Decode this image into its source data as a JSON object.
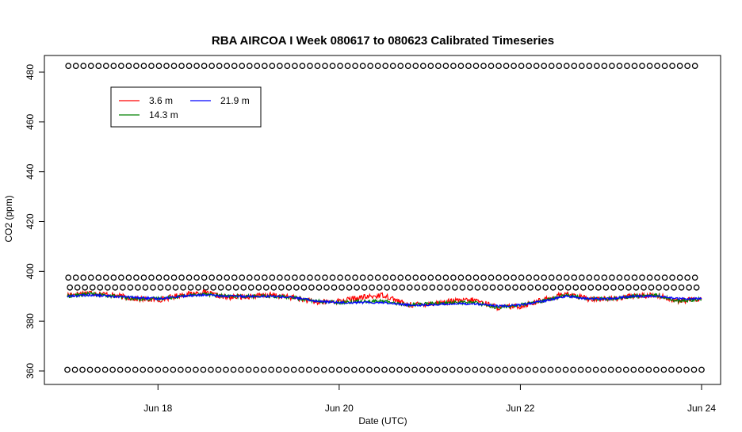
{
  "chart_data": {
    "type": "line",
    "title": "RBA AIRCOA I  Week 080617 to 080623  Calibrated Timeseries",
    "xlabel": "Date (UTC)",
    "ylabel": "CO2 (ppm)",
    "x_ticks": [
      "Jun 18",
      "Jun 20",
      "Jun 22",
      "Jun 24"
    ],
    "y_ticks": [
      "360",
      "380",
      "400",
      "420",
      "440",
      "460",
      "480"
    ],
    "xlim": [
      "2008-06-17 00:00",
      "2008-06-24 00:00"
    ],
    "ylim": [
      357,
      485
    ],
    "legend_position": "top-left",
    "series": [
      {
        "name": "3.6 m",
        "color": "#ff0000",
        "points": [
          [
            "2008-06-17 00:00",
            390.5
          ],
          [
            "2008-06-17 06:00",
            391.5
          ],
          [
            "2008-06-17 12:00",
            390.5
          ],
          [
            "2008-06-17 18:00",
            389.0
          ],
          [
            "2008-06-18 00:00",
            388.5
          ],
          [
            "2008-06-18 06:00",
            390.5
          ],
          [
            "2008-06-18 12:00",
            391.5
          ],
          [
            "2008-06-18 18:00",
            389.5
          ],
          [
            "2008-06-19 00:00",
            390.0
          ],
          [
            "2008-06-19 06:00",
            390.5
          ],
          [
            "2008-06-19 12:00",
            389.5
          ],
          [
            "2008-06-19 18:00",
            387.5
          ],
          [
            "2008-06-20 00:00",
            388.0
          ],
          [
            "2008-06-20 06:00",
            389.5
          ],
          [
            "2008-06-20 12:00",
            390.5
          ],
          [
            "2008-06-20 18:00",
            386.5
          ],
          [
            "2008-06-21 00:00",
            387.0
          ],
          [
            "2008-06-21 06:00",
            388.0
          ],
          [
            "2008-06-21 12:00",
            388.5
          ],
          [
            "2008-06-21 18:00",
            385.5
          ],
          [
            "2008-06-22 00:00",
            386.0
          ],
          [
            "2008-06-22 06:00",
            388.5
          ],
          [
            "2008-06-22 12:00",
            391.0
          ],
          [
            "2008-06-22 18:00",
            389.0
          ],
          [
            "2008-06-23 00:00",
            389.0
          ],
          [
            "2008-06-23 06:00",
            390.0
          ],
          [
            "2008-06-23 12:00",
            390.5
          ],
          [
            "2008-06-23 18:00",
            388.0
          ],
          [
            "2008-06-24 00:00",
            389.0
          ]
        ]
      },
      {
        "name": "14.3 m",
        "color": "#008000",
        "points": [
          [
            "2008-06-17 00:00",
            390.0
          ],
          [
            "2008-06-17 06:00",
            391.0
          ],
          [
            "2008-06-17 12:00",
            390.0
          ],
          [
            "2008-06-17 18:00",
            389.0
          ],
          [
            "2008-06-18 00:00",
            389.0
          ],
          [
            "2008-06-18 06:00",
            390.0
          ],
          [
            "2008-06-18 12:00",
            391.0
          ],
          [
            "2008-06-18 18:00",
            390.0
          ],
          [
            "2008-06-19 00:00",
            390.0
          ],
          [
            "2008-06-19 06:00",
            390.0
          ],
          [
            "2008-06-19 12:00",
            389.5
          ],
          [
            "2008-06-19 18:00",
            388.0
          ],
          [
            "2008-06-20 00:00",
            387.5
          ],
          [
            "2008-06-20 06:00",
            388.0
          ],
          [
            "2008-06-20 12:00",
            388.0
          ],
          [
            "2008-06-20 18:00",
            386.5
          ],
          [
            "2008-06-21 00:00",
            387.0
          ],
          [
            "2008-06-21 06:00",
            387.5
          ],
          [
            "2008-06-21 12:00",
            387.5
          ],
          [
            "2008-06-21 18:00",
            385.5
          ],
          [
            "2008-06-22 00:00",
            386.5
          ],
          [
            "2008-06-22 06:00",
            388.0
          ],
          [
            "2008-06-22 12:00",
            390.5
          ],
          [
            "2008-06-22 18:00",
            389.0
          ],
          [
            "2008-06-23 00:00",
            389.0
          ],
          [
            "2008-06-23 06:00",
            390.0
          ],
          [
            "2008-06-23 12:00",
            390.5
          ],
          [
            "2008-06-23 18:00",
            388.0
          ],
          [
            "2008-06-24 00:00",
            389.0
          ]
        ]
      },
      {
        "name": "21.9 m",
        "color": "#0000ff",
        "points": [
          [
            "2008-06-17 00:00",
            390.0
          ],
          [
            "2008-06-17 06:00",
            390.5
          ],
          [
            "2008-06-17 12:00",
            390.0
          ],
          [
            "2008-06-17 18:00",
            389.5
          ],
          [
            "2008-06-18 00:00",
            389.0
          ],
          [
            "2008-06-18 06:00",
            390.0
          ],
          [
            "2008-06-18 12:00",
            390.5
          ],
          [
            "2008-06-18 18:00",
            390.0
          ],
          [
            "2008-06-19 00:00",
            390.0
          ],
          [
            "2008-06-19 06:00",
            390.0
          ],
          [
            "2008-06-19 12:00",
            389.5
          ],
          [
            "2008-06-19 18:00",
            388.0
          ],
          [
            "2008-06-20 00:00",
            387.5
          ],
          [
            "2008-06-20 06:00",
            387.5
          ],
          [
            "2008-06-20 12:00",
            387.5
          ],
          [
            "2008-06-20 18:00",
            386.5
          ],
          [
            "2008-06-21 00:00",
            386.5
          ],
          [
            "2008-06-21 06:00",
            387.0
          ],
          [
            "2008-06-21 12:00",
            387.0
          ],
          [
            "2008-06-21 18:00",
            386.0
          ],
          [
            "2008-06-22 00:00",
            386.5
          ],
          [
            "2008-06-22 06:00",
            388.0
          ],
          [
            "2008-06-22 12:00",
            390.0
          ],
          [
            "2008-06-22 18:00",
            389.0
          ],
          [
            "2008-06-23 00:00",
            389.0
          ],
          [
            "2008-06-23 06:00",
            390.0
          ],
          [
            "2008-06-23 12:00",
            390.0
          ],
          [
            "2008-06-23 18:00",
            389.0
          ],
          [
            "2008-06-24 00:00",
            389.0
          ]
        ]
      }
    ],
    "marker_rows": [
      {
        "y": 482.5,
        "start": "2008-06-17 00:15",
        "end": "2008-06-24 00:00",
        "interval_hours": 2
      },
      {
        "y": 397.5,
        "start": "2008-06-17 00:15",
        "end": "2008-06-24 00:00",
        "interval_hours": 2
      },
      {
        "y": 393.5,
        "start": "2008-06-17 00:40",
        "end": "2008-06-24 00:00",
        "interval_hours": 2
      },
      {
        "y": 360.5,
        "start": "2008-06-17 00:00",
        "end": "2008-06-24 00:00",
        "interval_hours": 2
      }
    ],
    "marker_symbol": "o",
    "line_color_default": "#000000"
  }
}
